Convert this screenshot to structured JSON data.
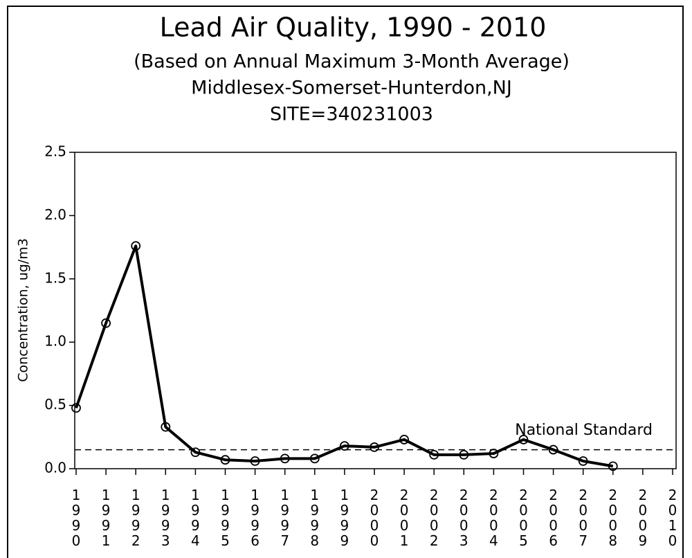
{
  "chart_data": {
    "type": "line",
    "title": "Lead Air Quality, 1990 - 2010",
    "subtitle": "(Based on Annual Maximum 3-Month Average)",
    "subtitle2": "Middlesex-Somerset-Hunterdon,NJ",
    "subtitle3": "SITE=340231003",
    "ylabel": "Concentration, ug/m3",
    "x": [
      1990,
      1991,
      1992,
      1993,
      1994,
      1995,
      1996,
      1997,
      1998,
      1999,
      2000,
      2001,
      2002,
      2003,
      2004,
      2005,
      2006,
      2007,
      2008
    ],
    "series": [
      {
        "name": "Lead",
        "color": "#000000",
        "values": [
          0.48,
          1.15,
          1.76,
          0.33,
          0.13,
          0.07,
          0.06,
          0.08,
          0.08,
          0.18,
          0.17,
          0.23,
          0.11,
          0.11,
          0.12,
          0.23,
          0.15,
          0.06,
          0.02
        ]
      }
    ],
    "xlim": [
      1990,
      2010
    ],
    "xticks": [
      1990,
      1991,
      1992,
      1993,
      1994,
      1995,
      1996,
      1997,
      1998,
      1999,
      2000,
      2001,
      2002,
      2003,
      2004,
      2005,
      2006,
      2007,
      2008,
      2009,
      2010
    ],
    "ylim": [
      0,
      2.5
    ],
    "yticks": [
      {
        "value": 0,
        "label": "0.0"
      },
      0.5,
      {
        "value": 1,
        "label": "1.0"
      },
      1.5,
      {
        "value": 2,
        "label": "2.0"
      },
      2.5
    ],
    "reference_line": {
      "value": 0.15,
      "label": "National Standard"
    }
  }
}
